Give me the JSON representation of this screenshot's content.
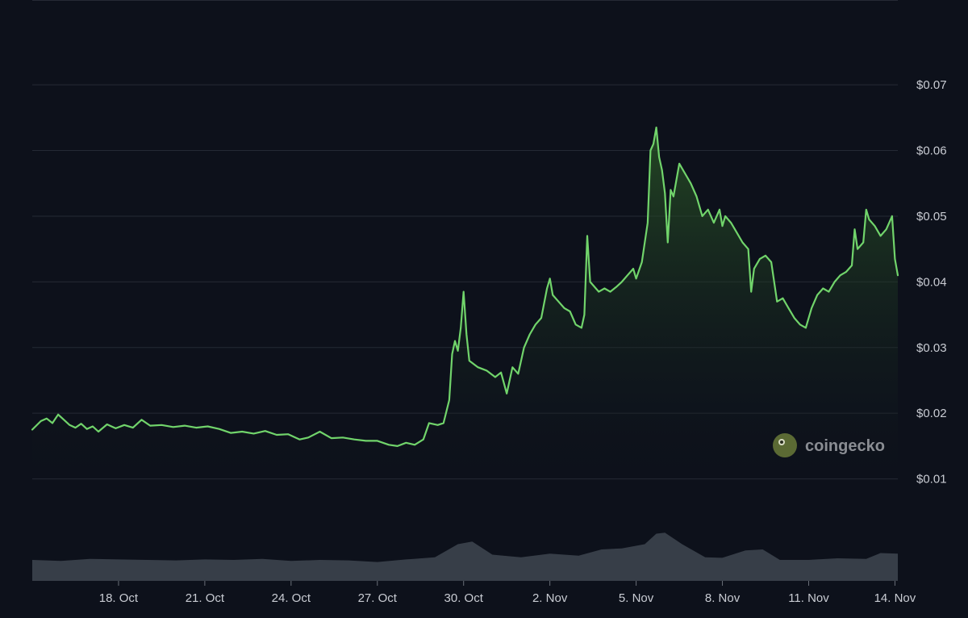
{
  "chart_data": {
    "type": "area",
    "title": "",
    "xlabel": "",
    "ylabel": "",
    "x_tick_labels": [
      "18. Oct",
      "21. Oct",
      "24. Oct",
      "27. Oct",
      "30. Oct",
      "2. Nov",
      "5. Nov",
      "8. Nov",
      "11. Nov",
      "14. Nov"
    ],
    "x_tick_days": [
      3,
      6,
      9,
      12,
      15,
      18,
      21,
      24,
      27,
      30
    ],
    "y_tick_labels": [
      "$0.01",
      "$0.02",
      "$0.03",
      "$0.04",
      "$0.05",
      "$0.06",
      "$0.07"
    ],
    "y_tick_values": [
      0.01,
      0.02,
      0.03,
      0.04,
      0.05,
      0.06,
      0.07
    ],
    "ylim": [
      0.0,
      0.078
    ],
    "xlim_days": [
      0,
      30.1
    ],
    "grid": "horizontal",
    "legend": "none",
    "x_unit": "days from 15 Oct",
    "series": [
      {
        "values": [
          [
            0.0,
            0.0175
          ],
          [
            0.3,
            0.0188
          ],
          [
            0.5,
            0.0192
          ],
          [
            0.7,
            0.0185
          ],
          [
            0.9,
            0.0198
          ],
          [
            1.1,
            0.019
          ],
          [
            1.3,
            0.0182
          ],
          [
            1.5,
            0.0178
          ],
          [
            1.7,
            0.0184
          ],
          [
            1.9,
            0.0176
          ],
          [
            2.1,
            0.018
          ],
          [
            2.3,
            0.0172
          ],
          [
            2.6,
            0.0183
          ],
          [
            2.9,
            0.0177
          ],
          [
            3.2,
            0.0182
          ],
          [
            3.5,
            0.0178
          ],
          [
            3.8,
            0.019
          ],
          [
            4.1,
            0.0181
          ],
          [
            4.5,
            0.0182
          ],
          [
            4.9,
            0.0179
          ],
          [
            5.3,
            0.0181
          ],
          [
            5.7,
            0.0178
          ],
          [
            6.1,
            0.018
          ],
          [
            6.5,
            0.0176
          ],
          [
            6.9,
            0.017
          ],
          [
            7.3,
            0.0172
          ],
          [
            7.7,
            0.0169
          ],
          [
            8.1,
            0.0173
          ],
          [
            8.5,
            0.0167
          ],
          [
            8.9,
            0.0168
          ],
          [
            9.3,
            0.016
          ],
          [
            9.6,
            0.0163
          ],
          [
            10.0,
            0.0172
          ],
          [
            10.4,
            0.0162
          ],
          [
            10.8,
            0.0163
          ],
          [
            11.2,
            0.016
          ],
          [
            11.6,
            0.0158
          ],
          [
            12.0,
            0.0158
          ],
          [
            12.4,
            0.0152
          ],
          [
            12.7,
            0.015
          ],
          [
            13.0,
            0.0155
          ],
          [
            13.3,
            0.0152
          ],
          [
            13.6,
            0.016
          ],
          [
            13.8,
            0.0185
          ],
          [
            14.1,
            0.0182
          ],
          [
            14.3,
            0.0185
          ],
          [
            14.5,
            0.022
          ],
          [
            14.6,
            0.029
          ],
          [
            14.7,
            0.031
          ],
          [
            14.8,
            0.0295
          ],
          [
            14.9,
            0.033
          ],
          [
            15.0,
            0.0385
          ],
          [
            15.1,
            0.032
          ],
          [
            15.2,
            0.028
          ],
          [
            15.5,
            0.027
          ],
          [
            15.8,
            0.0265
          ],
          [
            16.1,
            0.0255
          ],
          [
            16.3,
            0.0262
          ],
          [
            16.5,
            0.023
          ],
          [
            16.7,
            0.027
          ],
          [
            16.9,
            0.026
          ],
          [
            17.1,
            0.03
          ],
          [
            17.3,
            0.032
          ],
          [
            17.5,
            0.0335
          ],
          [
            17.7,
            0.0345
          ],
          [
            17.9,
            0.039
          ],
          [
            18.0,
            0.0405
          ],
          [
            18.1,
            0.038
          ],
          [
            18.3,
            0.037
          ],
          [
            18.5,
            0.036
          ],
          [
            18.7,
            0.0355
          ],
          [
            18.9,
            0.0335
          ],
          [
            19.1,
            0.033
          ],
          [
            19.2,
            0.035
          ],
          [
            19.3,
            0.047
          ],
          [
            19.4,
            0.04
          ],
          [
            19.5,
            0.0395
          ],
          [
            19.7,
            0.0385
          ],
          [
            19.9,
            0.039
          ],
          [
            20.1,
            0.0385
          ],
          [
            20.3,
            0.0392
          ],
          [
            20.5,
            0.04
          ],
          [
            20.7,
            0.041
          ],
          [
            20.9,
            0.042
          ],
          [
            21.0,
            0.0405
          ],
          [
            21.2,
            0.043
          ],
          [
            21.4,
            0.049
          ],
          [
            21.5,
            0.06
          ],
          [
            21.6,
            0.061
          ],
          [
            21.7,
            0.0635
          ],
          [
            21.8,
            0.059
          ],
          [
            21.9,
            0.057
          ],
          [
            22.0,
            0.0535
          ],
          [
            22.1,
            0.046
          ],
          [
            22.2,
            0.054
          ],
          [
            22.3,
            0.053
          ],
          [
            22.5,
            0.058
          ],
          [
            22.7,
            0.0565
          ],
          [
            22.9,
            0.055
          ],
          [
            23.1,
            0.053
          ],
          [
            23.3,
            0.05
          ],
          [
            23.5,
            0.051
          ],
          [
            23.7,
            0.049
          ],
          [
            23.9,
            0.051
          ],
          [
            24.0,
            0.0485
          ],
          [
            24.1,
            0.05
          ],
          [
            24.3,
            0.049
          ],
          [
            24.5,
            0.0475
          ],
          [
            24.7,
            0.046
          ],
          [
            24.9,
            0.045
          ],
          [
            25.0,
            0.0385
          ],
          [
            25.1,
            0.042
          ],
          [
            25.3,
            0.0435
          ],
          [
            25.5,
            0.044
          ],
          [
            25.7,
            0.043
          ],
          [
            25.9,
            0.037
          ],
          [
            26.1,
            0.0375
          ],
          [
            26.3,
            0.036
          ],
          [
            26.5,
            0.0345
          ],
          [
            26.7,
            0.0335
          ],
          [
            26.9,
            0.033
          ],
          [
            27.1,
            0.036
          ],
          [
            27.3,
            0.038
          ],
          [
            27.5,
            0.039
          ],
          [
            27.7,
            0.0385
          ],
          [
            27.9,
            0.04
          ],
          [
            28.1,
            0.041
          ],
          [
            28.3,
            0.0415
          ],
          [
            28.5,
            0.0425
          ],
          [
            28.6,
            0.048
          ],
          [
            28.7,
            0.045
          ],
          [
            28.9,
            0.046
          ],
          [
            29.0,
            0.051
          ],
          [
            29.1,
            0.0495
          ],
          [
            29.3,
            0.0485
          ],
          [
            29.5,
            0.047
          ],
          [
            29.7,
            0.048
          ],
          [
            29.9,
            0.05
          ],
          [
            30.0,
            0.0435
          ],
          [
            30.1,
            0.041
          ]
        ]
      }
    ],
    "volume": {
      "type": "area",
      "values": [
        [
          0.0,
          0.4
        ],
        [
          1.0,
          0.38
        ],
        [
          2.0,
          0.42
        ],
        [
          3.0,
          0.41
        ],
        [
          4.0,
          0.4
        ],
        [
          5.0,
          0.39
        ],
        [
          6.0,
          0.41
        ],
        [
          7.0,
          0.4
        ],
        [
          8.0,
          0.42
        ],
        [
          9.0,
          0.38
        ],
        [
          10.0,
          0.4
        ],
        [
          11.0,
          0.39
        ],
        [
          12.0,
          0.36
        ],
        [
          13.0,
          0.41
        ],
        [
          14.0,
          0.45
        ],
        [
          14.8,
          0.7
        ],
        [
          15.3,
          0.75
        ],
        [
          16.0,
          0.5
        ],
        [
          17.0,
          0.45
        ],
        [
          18.0,
          0.52
        ],
        [
          19.0,
          0.48
        ],
        [
          19.8,
          0.6
        ],
        [
          20.5,
          0.62
        ],
        [
          21.3,
          0.7
        ],
        [
          21.7,
          0.9
        ],
        [
          22.0,
          0.92
        ],
        [
          22.6,
          0.7
        ],
        [
          23.4,
          0.45
        ],
        [
          24.0,
          0.44
        ],
        [
          24.8,
          0.58
        ],
        [
          25.4,
          0.6
        ],
        [
          26.0,
          0.4
        ],
        [
          27.0,
          0.4
        ],
        [
          28.0,
          0.43
        ],
        [
          29.0,
          0.42
        ],
        [
          29.5,
          0.53
        ],
        [
          30.1,
          0.52
        ]
      ]
    },
    "colors": {
      "line": "#71d46b",
      "area_top": "#2c5a27",
      "grid": "#252a35",
      "volume": "#3f4650",
      "background": "#0d111b"
    }
  },
  "watermark": {
    "text": "coingecko",
    "icon": "coingecko-logo-icon"
  }
}
